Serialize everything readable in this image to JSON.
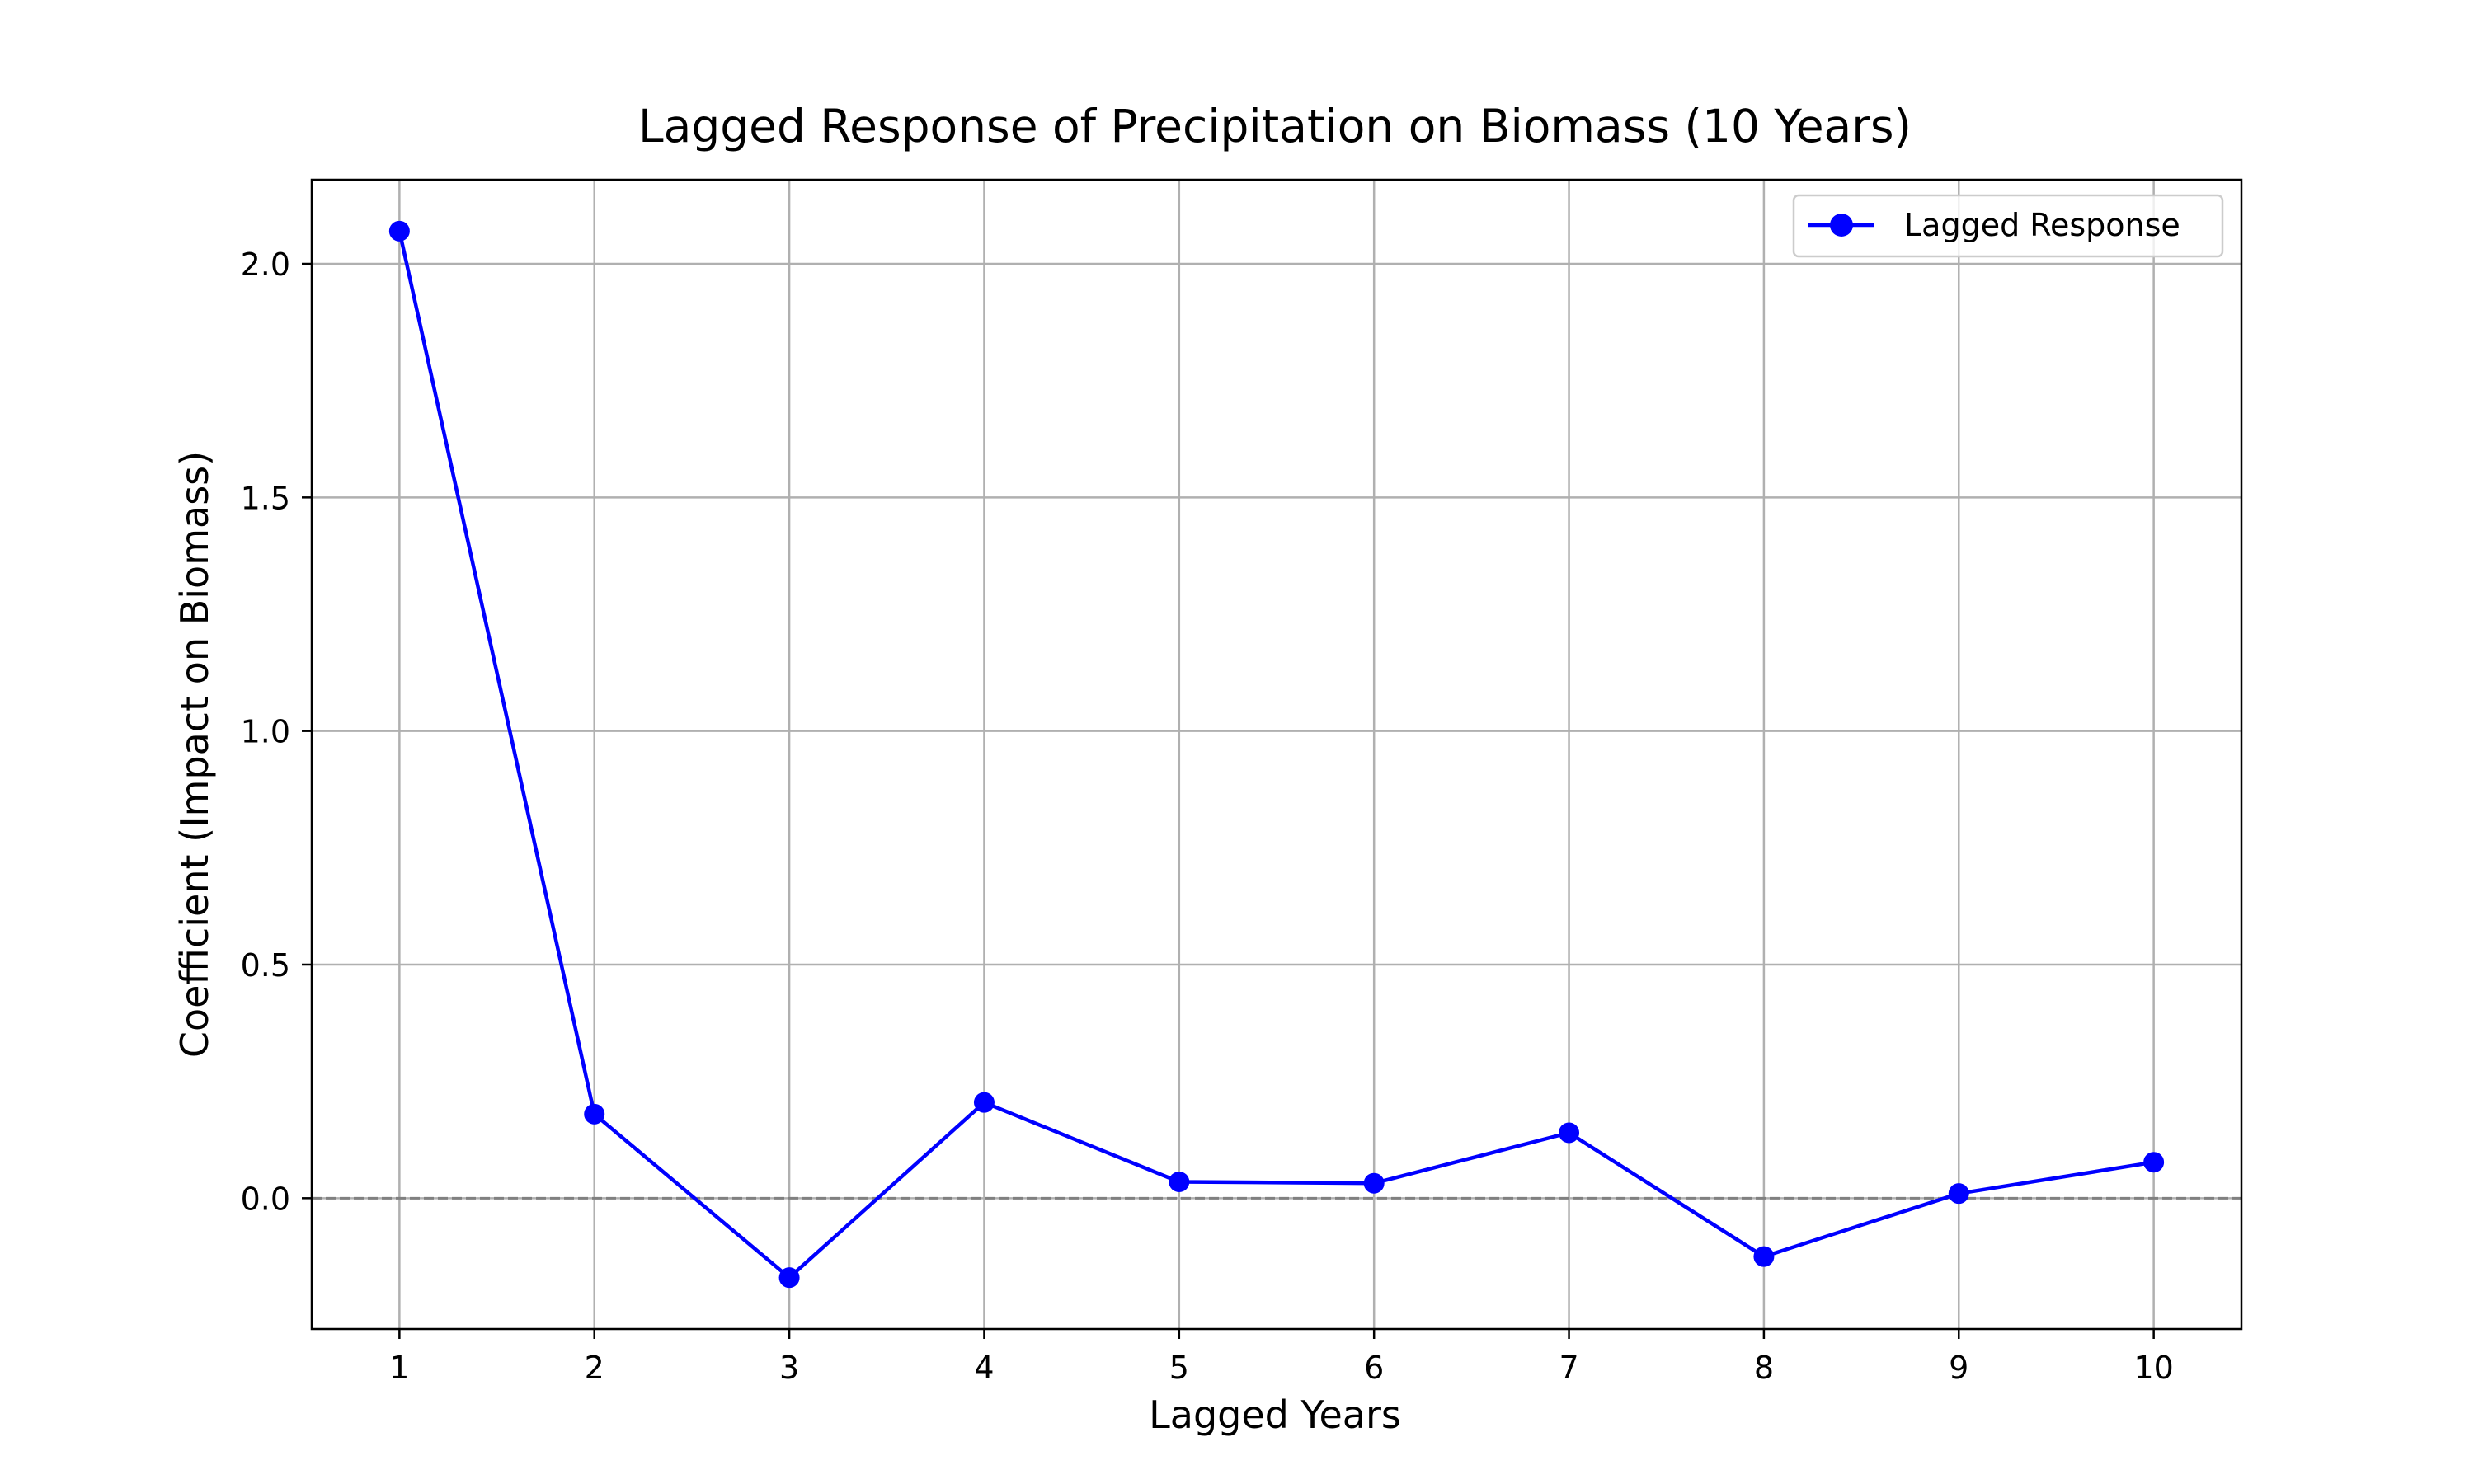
{
  "chart_data": {
    "type": "line",
    "title": "Lagged Response of Precipitation on Biomass (10 Years)",
    "xlabel": "Lagged Years",
    "ylabel": "Coefficient (Impact on Biomass)",
    "x": [
      1,
      2,
      3,
      4,
      5,
      6,
      7,
      8,
      9,
      10
    ],
    "x_tick_labels": [
      "1",
      "2",
      "3",
      "4",
      "5",
      "6",
      "7",
      "8",
      "9",
      "10"
    ],
    "y_ticks": [
      0.0,
      0.5,
      1.0,
      1.5,
      2.0
    ],
    "y_tick_labels": [
      "0.0",
      "0.5",
      "1.0",
      "1.5",
      "2.0"
    ],
    "xlim": [
      0.55,
      10.45
    ],
    "ylim": [
      -0.28,
      2.18
    ],
    "grid": true,
    "reference_line": {
      "y": 0,
      "style": "dashed",
      "color": "#808080"
    },
    "legend_position": "top-right",
    "series": [
      {
        "name": "Lagged Response",
        "color": "#0000ff",
        "marker": "circle",
        "values": [
          2.07,
          0.18,
          -0.17,
          0.205,
          0.035,
          0.032,
          0.14,
          -0.125,
          0.01,
          0.077
        ]
      }
    ]
  }
}
